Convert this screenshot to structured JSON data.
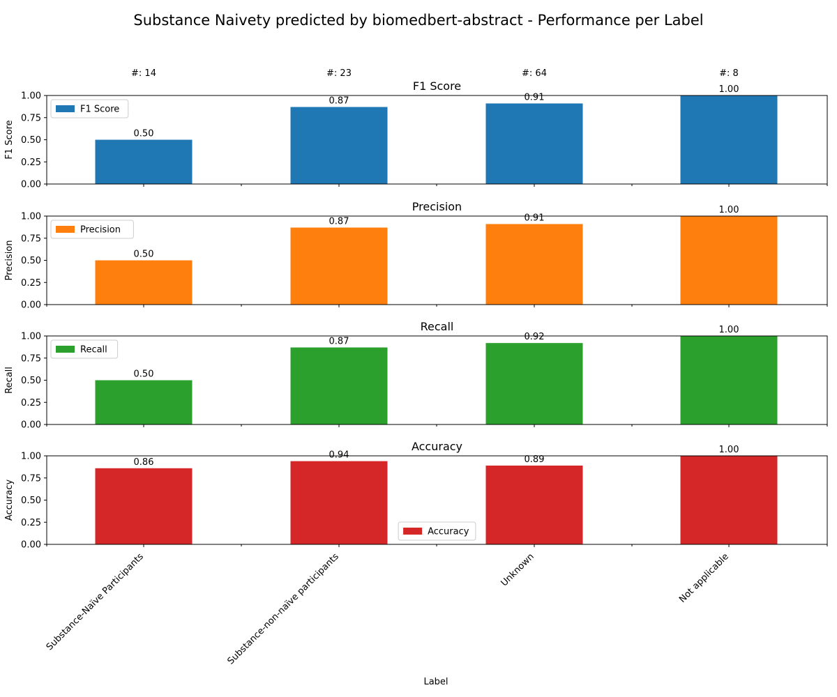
{
  "chart_data": {
    "type": "bar",
    "title": "Substance Naivety predicted by biomedbert-abstract - Performance per Label",
    "xlabel": "Label",
    "categories": [
      "Substance-Naïve Participants",
      "Substance-non-naïve participants",
      "Unknown",
      "Not applicable"
    ],
    "count_labels": [
      "#: 14",
      "#: 23",
      "#: 64",
      "#: 8"
    ],
    "yticks": [
      "0.00",
      "0.25",
      "0.50",
      "0.75",
      "1.00"
    ],
    "ylim": [
      0,
      1
    ],
    "grid": false,
    "panels": [
      {
        "title": "F1 Score",
        "ylabel": "F1 Score",
        "legend": "F1 Score",
        "legend_position": "upper-left",
        "color": "#1f77b4",
        "values": [
          0.5,
          0.87,
          0.91,
          1.0
        ],
        "value_labels": [
          "0.50",
          "0.87",
          "0.91",
          "1.00"
        ]
      },
      {
        "title": "Precision",
        "ylabel": "Precision",
        "legend": "Precision",
        "legend_position": "upper-left",
        "color": "#ff7f0e",
        "values": [
          0.5,
          0.87,
          0.91,
          1.0
        ],
        "value_labels": [
          "0.50",
          "0.87",
          "0.91",
          "1.00"
        ]
      },
      {
        "title": "Recall",
        "ylabel": "Recall",
        "legend": "Recall",
        "legend_position": "upper-left",
        "color": "#2ca02c",
        "values": [
          0.5,
          0.87,
          0.92,
          1.0
        ],
        "value_labels": [
          "0.50",
          "0.87",
          "0.92",
          "1.00"
        ]
      },
      {
        "title": "Accuracy",
        "ylabel": "Accuracy",
        "legend": "Accuracy",
        "legend_position": "lower-center",
        "color": "#d62728",
        "values": [
          0.86,
          0.94,
          0.89,
          1.0
        ],
        "value_labels": [
          "0.86",
          "0.94",
          "0.89",
          "1.00"
        ]
      }
    ]
  }
}
